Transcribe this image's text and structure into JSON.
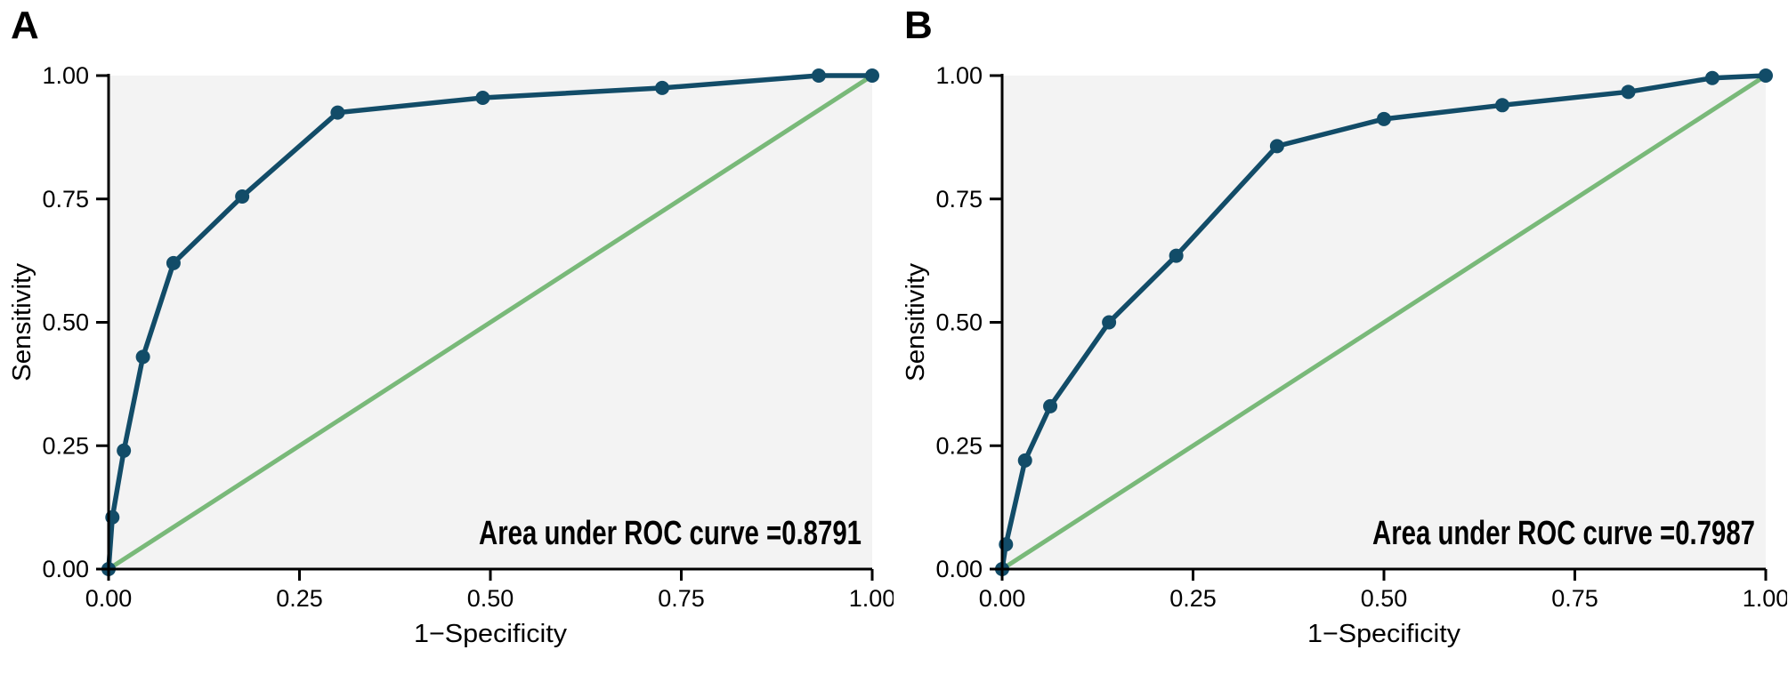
{
  "colors": {
    "curve": "#124c68",
    "reference_line": "#79b979",
    "plot_background": "#f3f3f3",
    "axis": "#000000",
    "text": "#000000",
    "background": "#ffffff"
  },
  "chart_data": [
    {
      "type": "line",
      "panel_label": "A",
      "xlabel": "1−Specificity",
      "ylabel": "Sensitivity",
      "x_ticks": [
        "0.00",
        "0.25",
        "0.50",
        "0.75",
        "1.00"
      ],
      "y_ticks": [
        "0.00",
        "0.25",
        "0.50",
        "0.75",
        "1.00"
      ],
      "xlim": [
        0,
        1
      ],
      "ylim": [
        0,
        1
      ],
      "grid": false,
      "legend": "none",
      "annotation": "Area under ROC curve =0.8791",
      "auc": 0.8791,
      "series": [
        {
          "name": "ROC curve",
          "marker": "circle",
          "points": [
            [
              0.0,
              0.0
            ],
            [
              0.005,
              0.105
            ],
            [
              0.02,
              0.24
            ],
            [
              0.045,
              0.43
            ],
            [
              0.085,
              0.62
            ],
            [
              0.175,
              0.755
            ],
            [
              0.3,
              0.925
            ],
            [
              0.49,
              0.955
            ],
            [
              0.725,
              0.975
            ],
            [
              0.93,
              1.0
            ],
            [
              1.0,
              1.0
            ]
          ]
        },
        {
          "name": "Reference diagonal",
          "marker": "none",
          "points": [
            [
              0,
              0
            ],
            [
              1,
              1
            ]
          ]
        }
      ]
    },
    {
      "type": "line",
      "panel_label": "B",
      "xlabel": "1−Specificity",
      "ylabel": "Sensitivity",
      "x_ticks": [
        "0.00",
        "0.25",
        "0.50",
        "0.75",
        "1.00"
      ],
      "y_ticks": [
        "0.00",
        "0.25",
        "0.50",
        "0.75",
        "1.00"
      ],
      "xlim": [
        0,
        1
      ],
      "ylim": [
        0,
        1
      ],
      "grid": false,
      "legend": "none",
      "annotation": "Area under ROC curve =0.7987",
      "auc": 0.7987,
      "series": [
        {
          "name": "ROC curve",
          "marker": "circle",
          "points": [
            [
              0.0,
              0.0
            ],
            [
              0.005,
              0.05
            ],
            [
              0.03,
              0.22
            ],
            [
              0.063,
              0.33
            ],
            [
              0.14,
              0.5
            ],
            [
              0.228,
              0.635
            ],
            [
              0.36,
              0.857
            ],
            [
              0.5,
              0.912
            ],
            [
              0.655,
              0.94
            ],
            [
              0.82,
              0.967
            ],
            [
              0.93,
              0.995
            ],
            [
              1.0,
              1.0
            ]
          ]
        },
        {
          "name": "Reference diagonal",
          "marker": "none",
          "points": [
            [
              0,
              0
            ],
            [
              1,
              1
            ]
          ]
        }
      ]
    }
  ]
}
